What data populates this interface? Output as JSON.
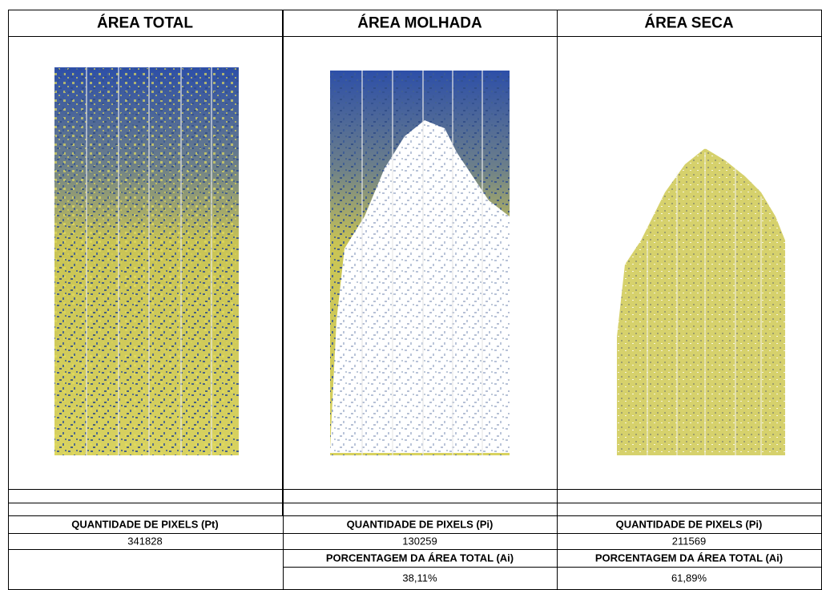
{
  "columns": [
    {
      "title": "ÁREA TOTAL",
      "pixels_label": "QUANTIDADE DE PIXELS (Pt)",
      "pixels": 341828
    },
    {
      "title": "ÁREA MOLHADA",
      "pixels_label": "QUANTIDADE DE PIXELS (Pi)",
      "pixels": 130259,
      "percent_label": "PORCENTAGEM DA ÁREA TOTAL (Ai)",
      "percent": "38,11%"
    },
    {
      "title": "ÁREA SECA",
      "pixels_label": "QUANTIDADE DE PIXELS (Pi)",
      "pixels": 211569,
      "percent_label": "PORCENTAGEM DA ÁREA TOTAL (Ai)",
      "percent": "61,89%"
    }
  ]
}
